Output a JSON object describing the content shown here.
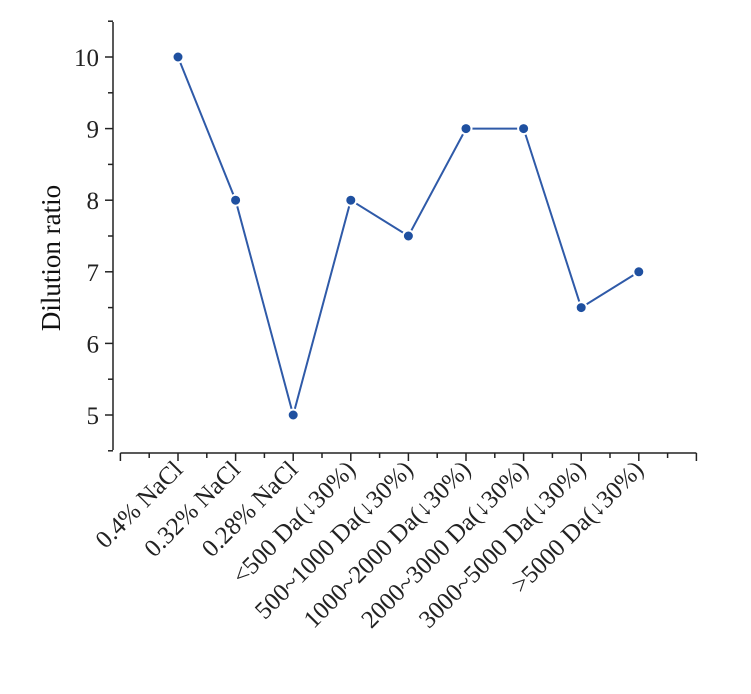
{
  "chart_data": {
    "type": "line",
    "title": "",
    "xlabel": "",
    "ylabel": "Dilution ratio",
    "categories": [
      "0.4% NaCl",
      "0.32% NaCl",
      "0.28% NaCl",
      "<500 Da(↓30%)",
      "500~1000 Da(↓30%)",
      "1000~2000 Da(↓30%)",
      "2000~3000 Da(↓30%)",
      "3000~5000 Da(↓30%)",
      ">5000 Da(↓30%)"
    ],
    "values": [
      10,
      8,
      5,
      8,
      7.5,
      9,
      9,
      6.5,
      7
    ],
    "ylim": [
      4.5,
      10.5
    ],
    "yticks": [
      "5",
      "6",
      "7",
      "8",
      "9",
      "10"
    ],
    "grid": false,
    "colors": {
      "line": "#2f5aa8",
      "marker": "#1f50a0"
    }
  }
}
